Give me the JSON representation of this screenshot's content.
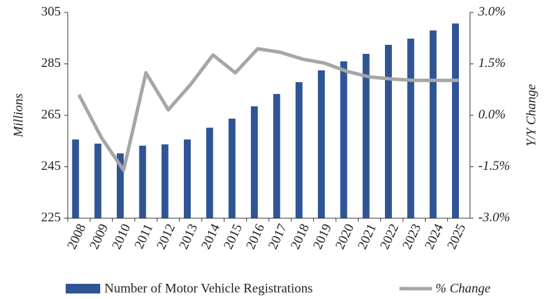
{
  "chart_data": {
    "type": "bar_line",
    "categories": [
      "2008",
      "2009",
      "2010",
      "2011",
      "2012",
      "2013",
      "2014",
      "2015",
      "2016",
      "2017",
      "2018",
      "2019",
      "2020",
      "2021",
      "2022",
      "2023",
      "2024",
      "2025"
    ],
    "series": [
      {
        "name": "Number of Motor Vehicle Registrations",
        "type": "bar",
        "color": "#2f5597",
        "values": [
          255.6,
          254.0,
          250.2,
          253.2,
          253.7,
          255.6,
          260.2,
          263.7,
          268.5,
          273.3,
          277.9,
          282.5,
          286.0,
          288.9,
          292.4,
          294.8,
          298.0,
          300.7
        ]
      },
      {
        "name": "% Change",
        "type": "line",
        "axis": "y2",
        "color": "#a6a6a6",
        "values": [
          0.6,
          -0.64,
          -1.6,
          1.24,
          0.16,
          0.9,
          1.76,
          1.24,
          1.94,
          1.84,
          1.64,
          1.52,
          1.28,
          1.12,
          1.06,
          1.02,
          1.02,
          1.02
        ]
      }
    ],
    "ylabel": "Millions",
    "y2label": "Y/Y Change",
    "ylim": [
      225,
      305
    ],
    "yticks": [
      225,
      245,
      265,
      285,
      305
    ],
    "y2lim": [
      -3,
      3
    ],
    "y2ticks": [
      {
        "value": -3,
        "label": "-3.0%"
      },
      {
        "value": -1.5,
        "label": "-1.5%"
      },
      {
        "value": 0,
        "label": "0.0%"
      },
      {
        "value": 1.5,
        "label": "1.5%"
      },
      {
        "value": 3,
        "label": "3.0%"
      }
    ],
    "grid": false,
    "legend": "bottom"
  }
}
